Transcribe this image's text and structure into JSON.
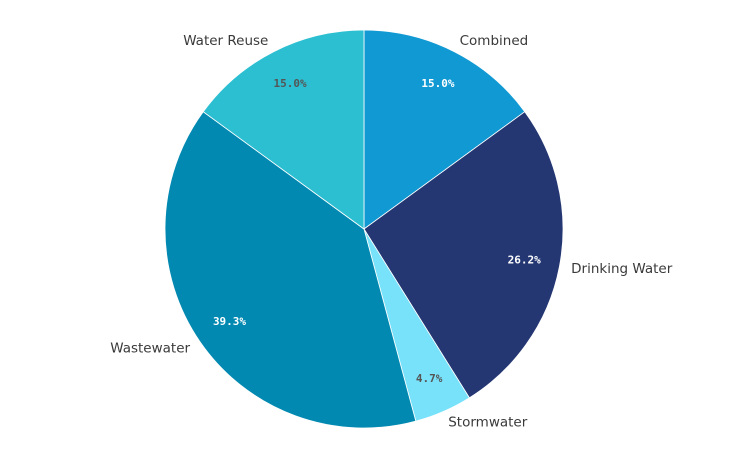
{
  "chart_data": {
    "type": "pie",
    "title": "",
    "start": "12 o'clock, clockwise",
    "slices": [
      {
        "label": "Combined",
        "value": 15.0,
        "display": "15.0%",
        "color": "#1199d3",
        "pct_color": "#ffffff"
      },
      {
        "label": "Drinking Water",
        "value": 26.2,
        "display": "26.2%",
        "color": "#243773",
        "pct_color": "#ffffff"
      },
      {
        "label": "Stormwater",
        "value": 4.7,
        "display": "4.7%",
        "color": "#79e2fb",
        "pct_color": "#555555"
      },
      {
        "label": "Wastewater",
        "value": 39.3,
        "display": "39.3%",
        "color": "#0289b1",
        "pct_color": "#ffffff"
      },
      {
        "label": "Water Reuse",
        "value": 15.0,
        "display": "15.0%",
        "color": "#2bbfd1",
        "pct_color": "#555555"
      }
    ]
  }
}
